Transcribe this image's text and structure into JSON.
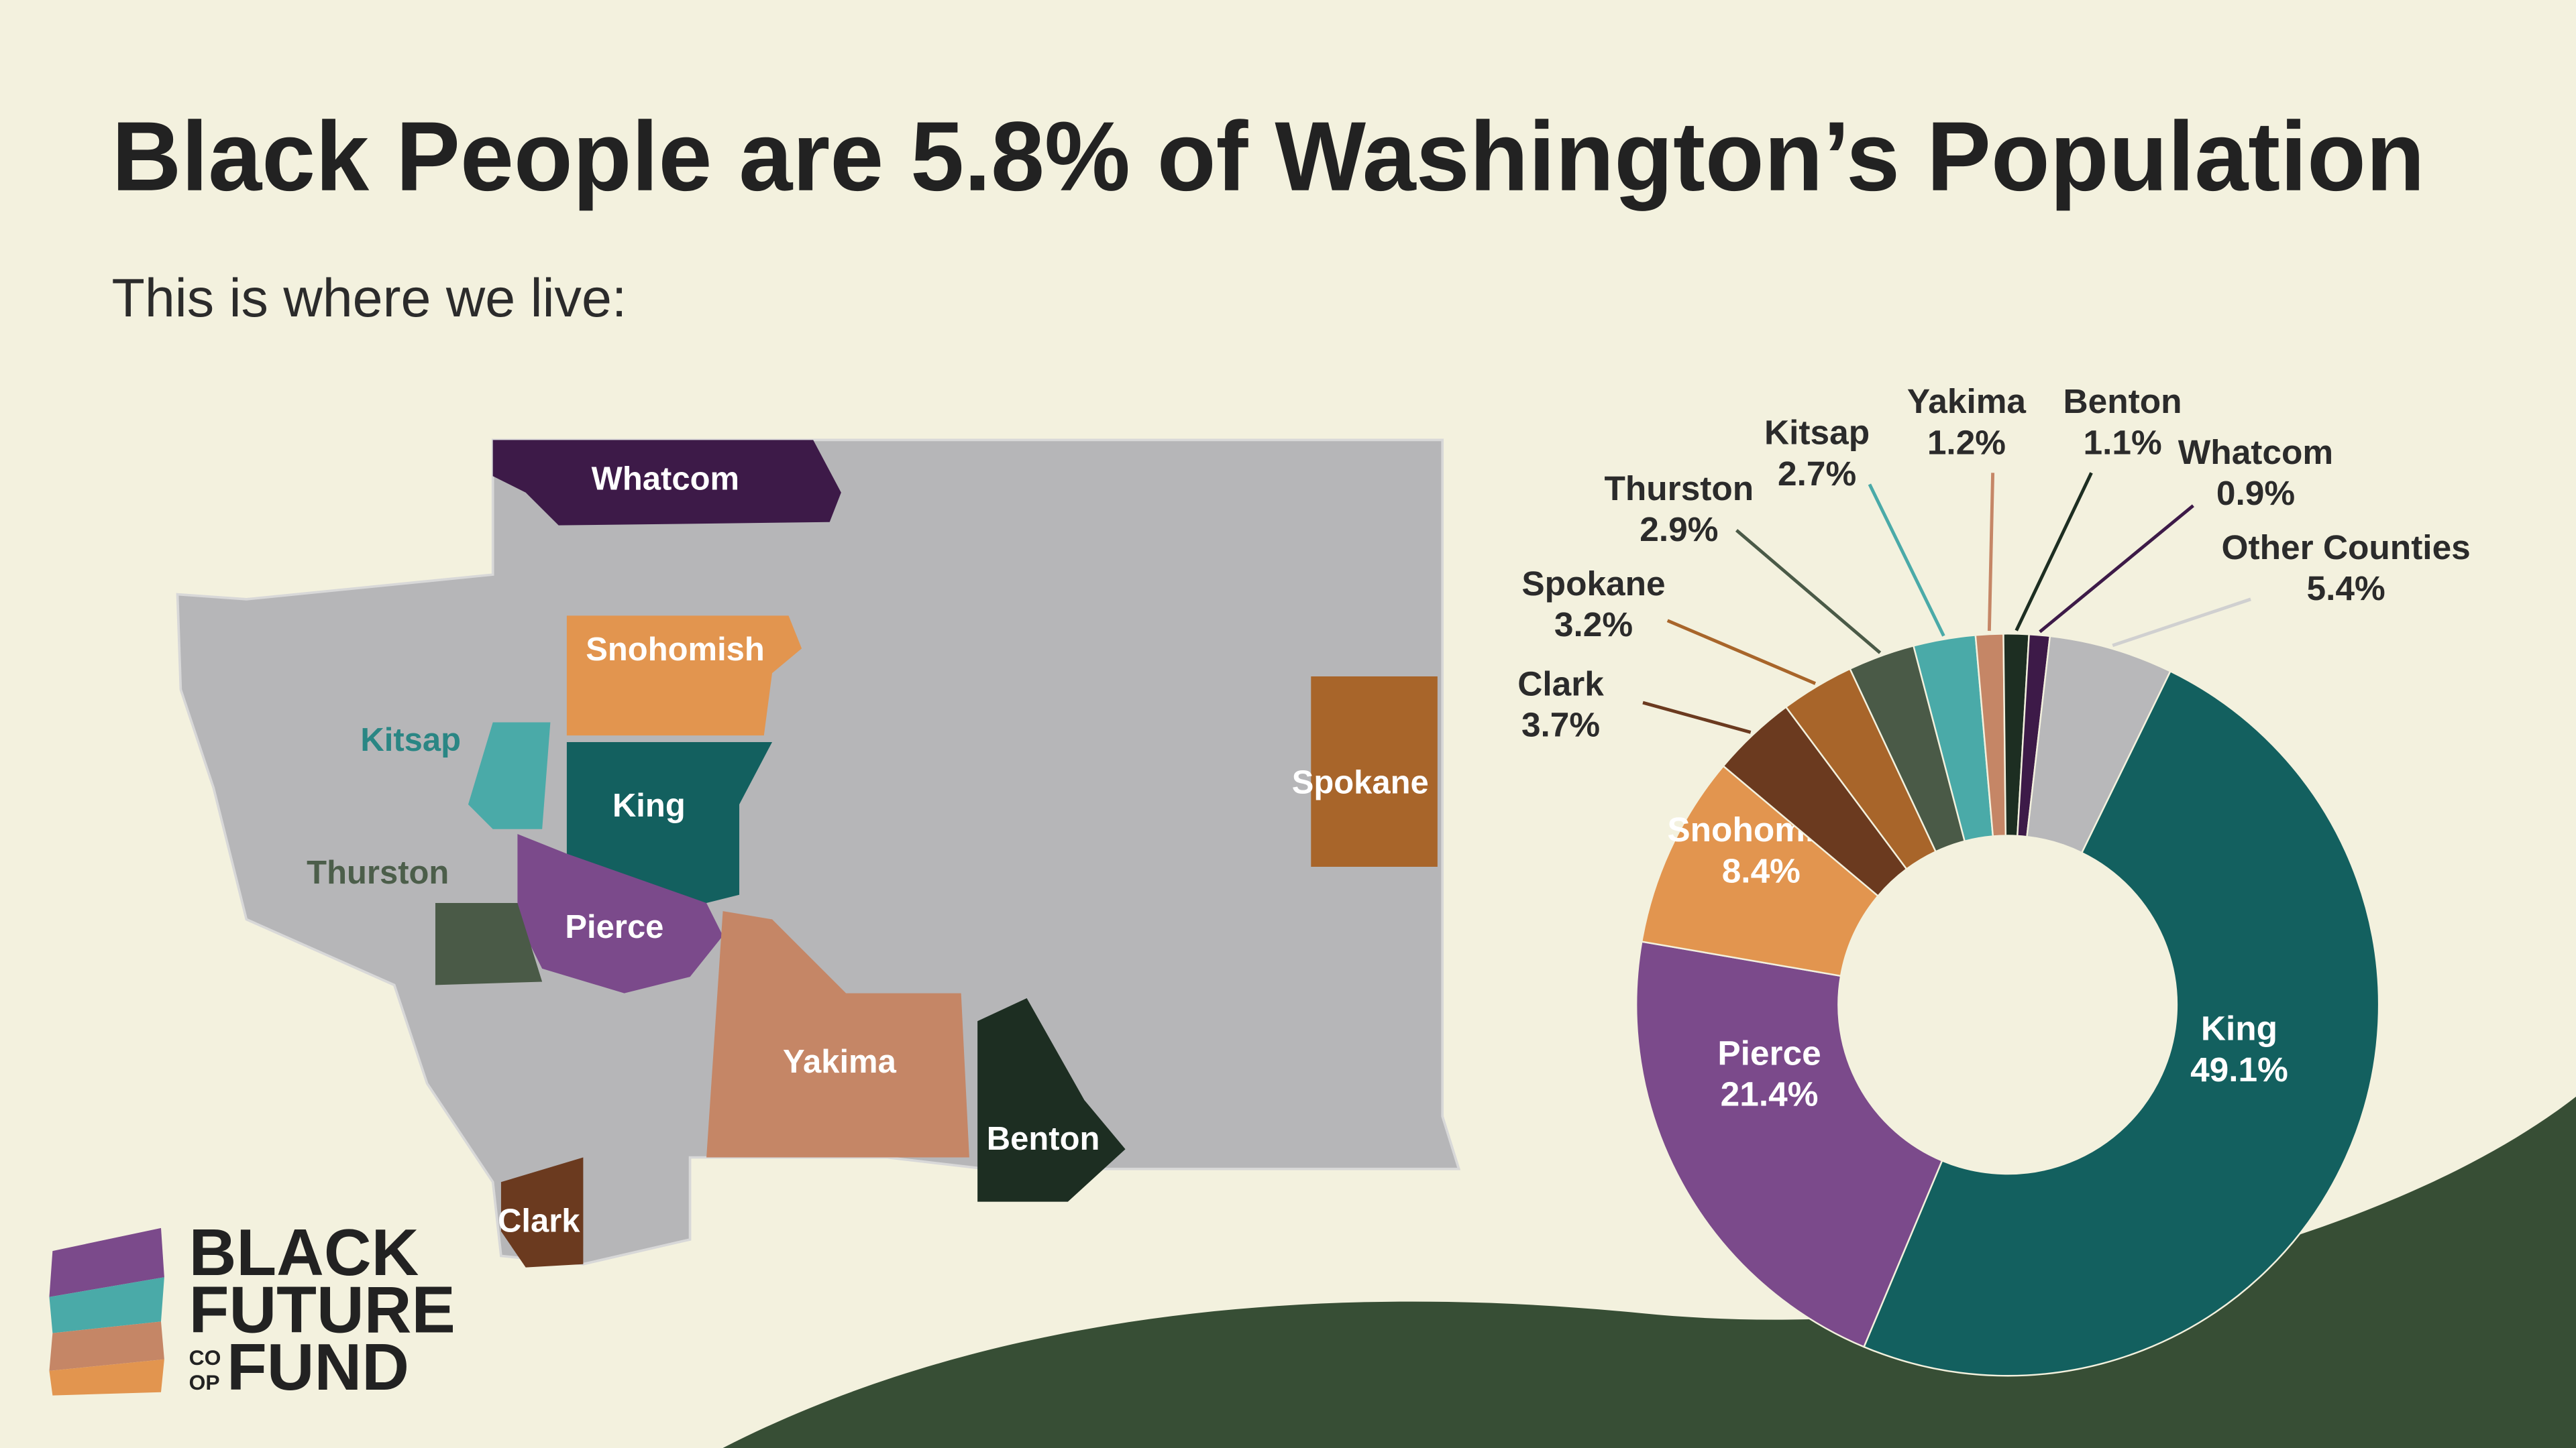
{
  "chart_data": {
    "type": "donut",
    "title": "Black People are 5.8% of Washington’s Population",
    "subtitle": "This is where we live:",
    "categories": [
      "King",
      "Pierce",
      "Snohomish",
      "Clark",
      "Spokane",
      "Thurston",
      "Kitsap",
      "Yakima",
      "Benton",
      "Whatcom",
      "Other Counties"
    ],
    "values": [
      49.1,
      21.4,
      8.4,
      3.7,
      3.2,
      2.9,
      2.7,
      1.2,
      1.1,
      0.9,
      5.4
    ],
    "value_labels": [
      "49.1%",
      "21.4%",
      "8.4%",
      "3.7%",
      "3.2%",
      "2.9%",
      "2.7%",
      "1.2%",
      "1.1%",
      "0.9%",
      "5.4%"
    ],
    "colors": [
      "#13605f",
      "#7b4a8b",
      "#e2954f",
      "#6b3a1f",
      "#a8652a",
      "#4a5a47",
      "#4aaaa8",
      "#c58666",
      "#1d2e22",
      "#3d1a48",
      "#b8b8ba"
    ]
  },
  "map": {
    "labels": [
      "Whatcom",
      "Snohomish",
      "Kitsap",
      "King",
      "Thurston",
      "Pierce",
      "Spokane",
      "Yakima",
      "Benton",
      "Clark"
    ]
  },
  "logo": {
    "lines": [
      "BLACK",
      "FUTURE",
      "CO",
      "OP",
      "FUND"
    ]
  }
}
